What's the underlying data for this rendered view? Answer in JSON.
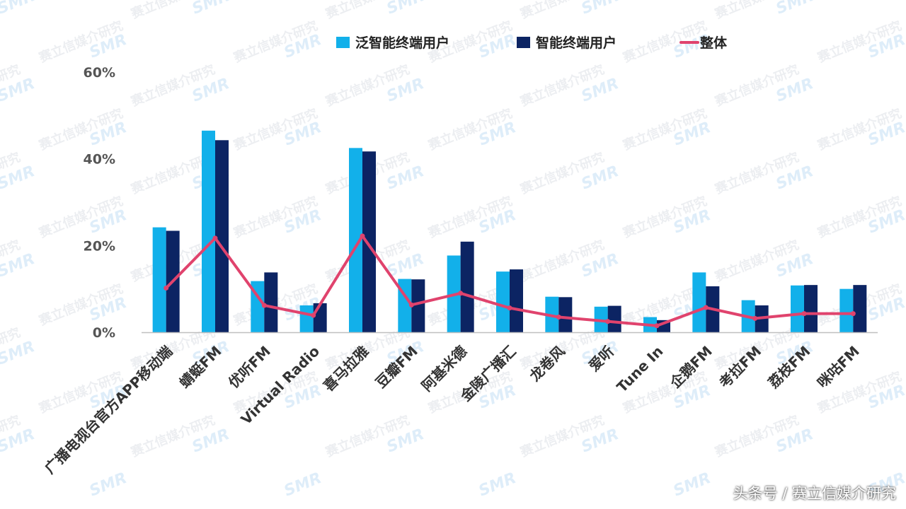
{
  "chart_data": {
    "type": "bar",
    "categories": [
      "广播电视台官方APP移动端",
      "蜻蜓FM",
      "优听FM",
      "Virtual Radio",
      "喜马拉雅",
      "豆瓣FM",
      "阿基米德",
      "金陵广播汇",
      "龙卷风",
      "爱听",
      "Tune In",
      "企鹅FM",
      "考拉FM",
      "荔枝FM",
      "咪咕FM"
    ],
    "series": [
      {
        "name": "泛智能终端用户",
        "type": "bar",
        "color": "#12b0ea",
        "values": [
          24.2,
          46.5,
          11.8,
          6.2,
          42.5,
          12.3,
          17.7,
          14.0,
          8.2,
          5.9,
          3.5,
          13.8,
          7.4,
          10.8,
          10.0
        ]
      },
      {
        "name": "智能终端用户",
        "type": "bar",
        "color": "#0c2463",
        "values": [
          23.4,
          44.3,
          13.8,
          6.7,
          41.7,
          12.2,
          20.9,
          14.5,
          8.1,
          6.1,
          2.8,
          10.6,
          6.2,
          10.9,
          10.9
        ]
      },
      {
        "name": "整体",
        "type": "line",
        "color": "#e0436d",
        "values": [
          10.2,
          21.7,
          6.2,
          3.9,
          22.2,
          6.3,
          9.0,
          5.6,
          3.5,
          2.5,
          1.5,
          5.7,
          3.2,
          4.3,
          4.3
        ]
      }
    ],
    "yticks": [
      "0%",
      "20%",
      "40%",
      "60%"
    ],
    "ylim": [
      0,
      60
    ],
    "legend_position": "top",
    "grid": false
  },
  "watermark": {
    "text": "赛立信媒介研究",
    "logo": "SMR"
  },
  "footer": {
    "credit": "头条号 / 赛立信媒介研究"
  }
}
